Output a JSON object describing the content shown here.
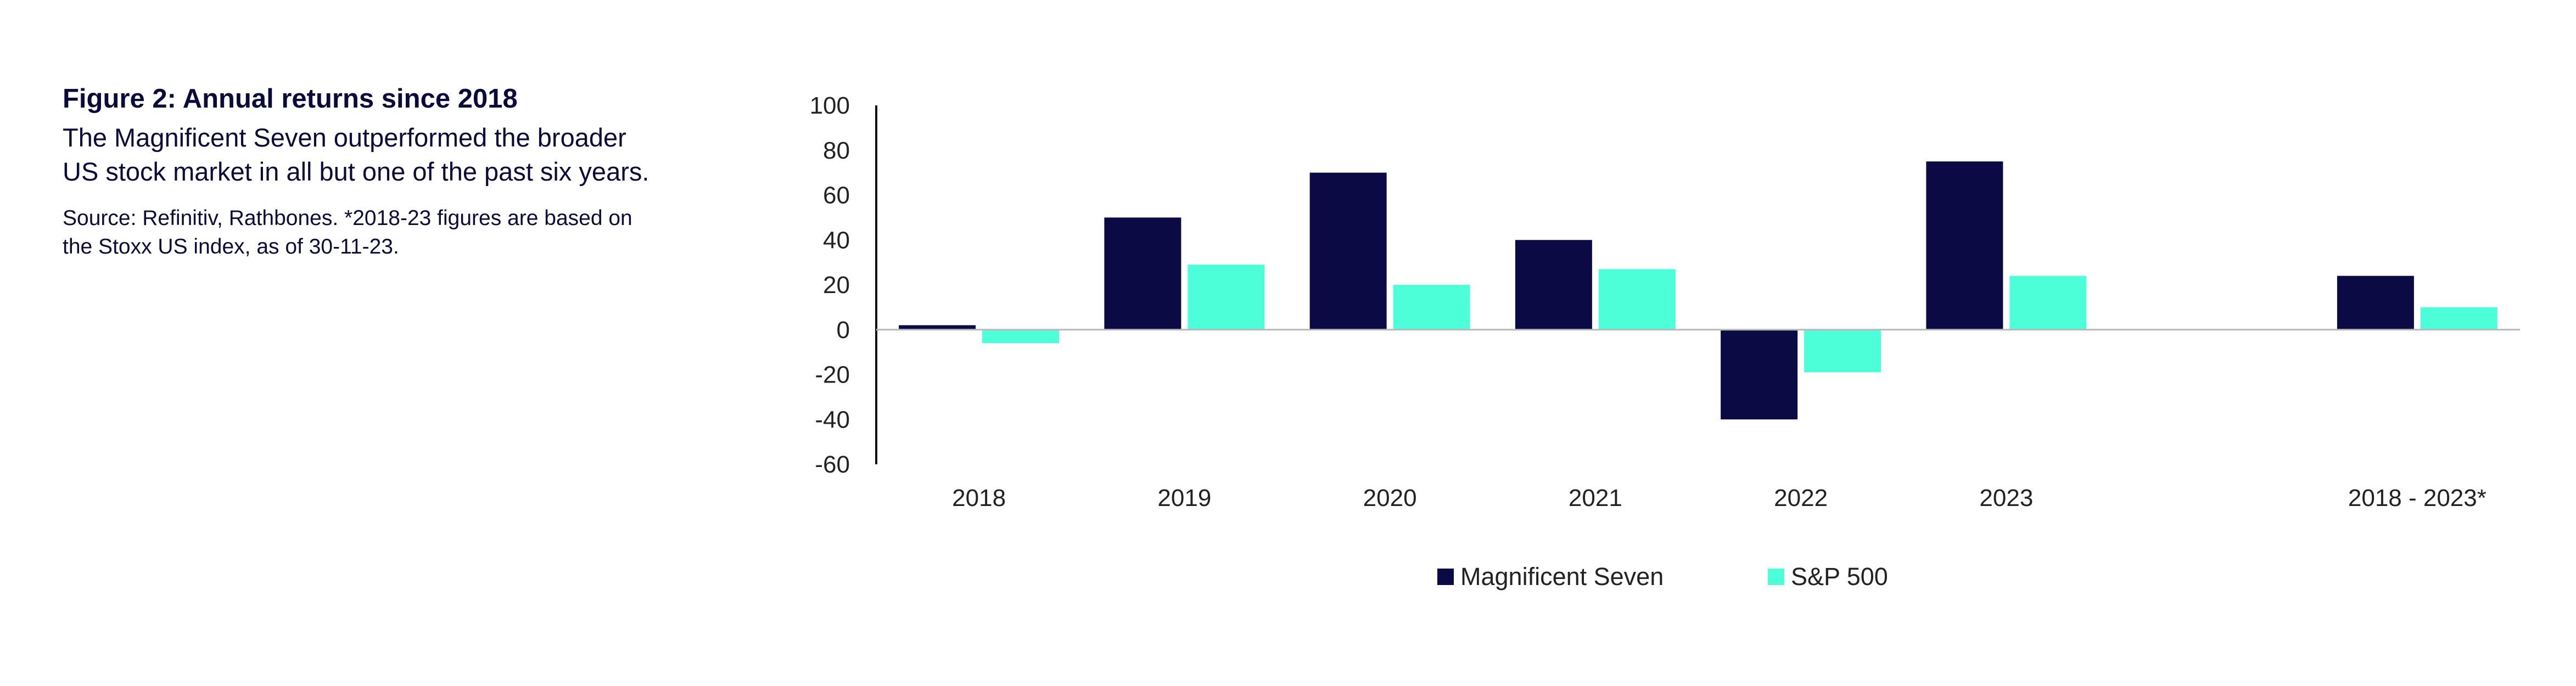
{
  "header": {
    "title": "Figure 2: Annual returns since 2018",
    "subtitle": "The Magnificent Seven outperformed the broader US stock market in all but one of the past six years.",
    "source": "Source:  Refinitiv, Rathbones. *2018-23 figures are based on the Stoxx US index, as of 30-11-23."
  },
  "chart_data": {
    "type": "bar",
    "categories": [
      "2018",
      "2019",
      "2020",
      "2021",
      "2022",
      "2023",
      "",
      "2018 - 2023*"
    ],
    "series": [
      {
        "name": "Magnificent Seven",
        "color": "#0b0a45",
        "values": [
          2,
          50,
          70,
          40,
          -40,
          75,
          null,
          24
        ]
      },
      {
        "name": "S&P 500",
        "color": "#4dffd9",
        "values": [
          -6,
          29,
          20,
          27,
          -19,
          24,
          null,
          10
        ]
      }
    ],
    "title": "",
    "xlabel": "",
    "ylabel": "",
    "ylim": [
      -60,
      100
    ],
    "yticks": [
      100,
      80,
      60,
      40,
      20,
      0,
      -20,
      -40,
      -60
    ],
    "grid": false,
    "legend": "bottom-center"
  }
}
